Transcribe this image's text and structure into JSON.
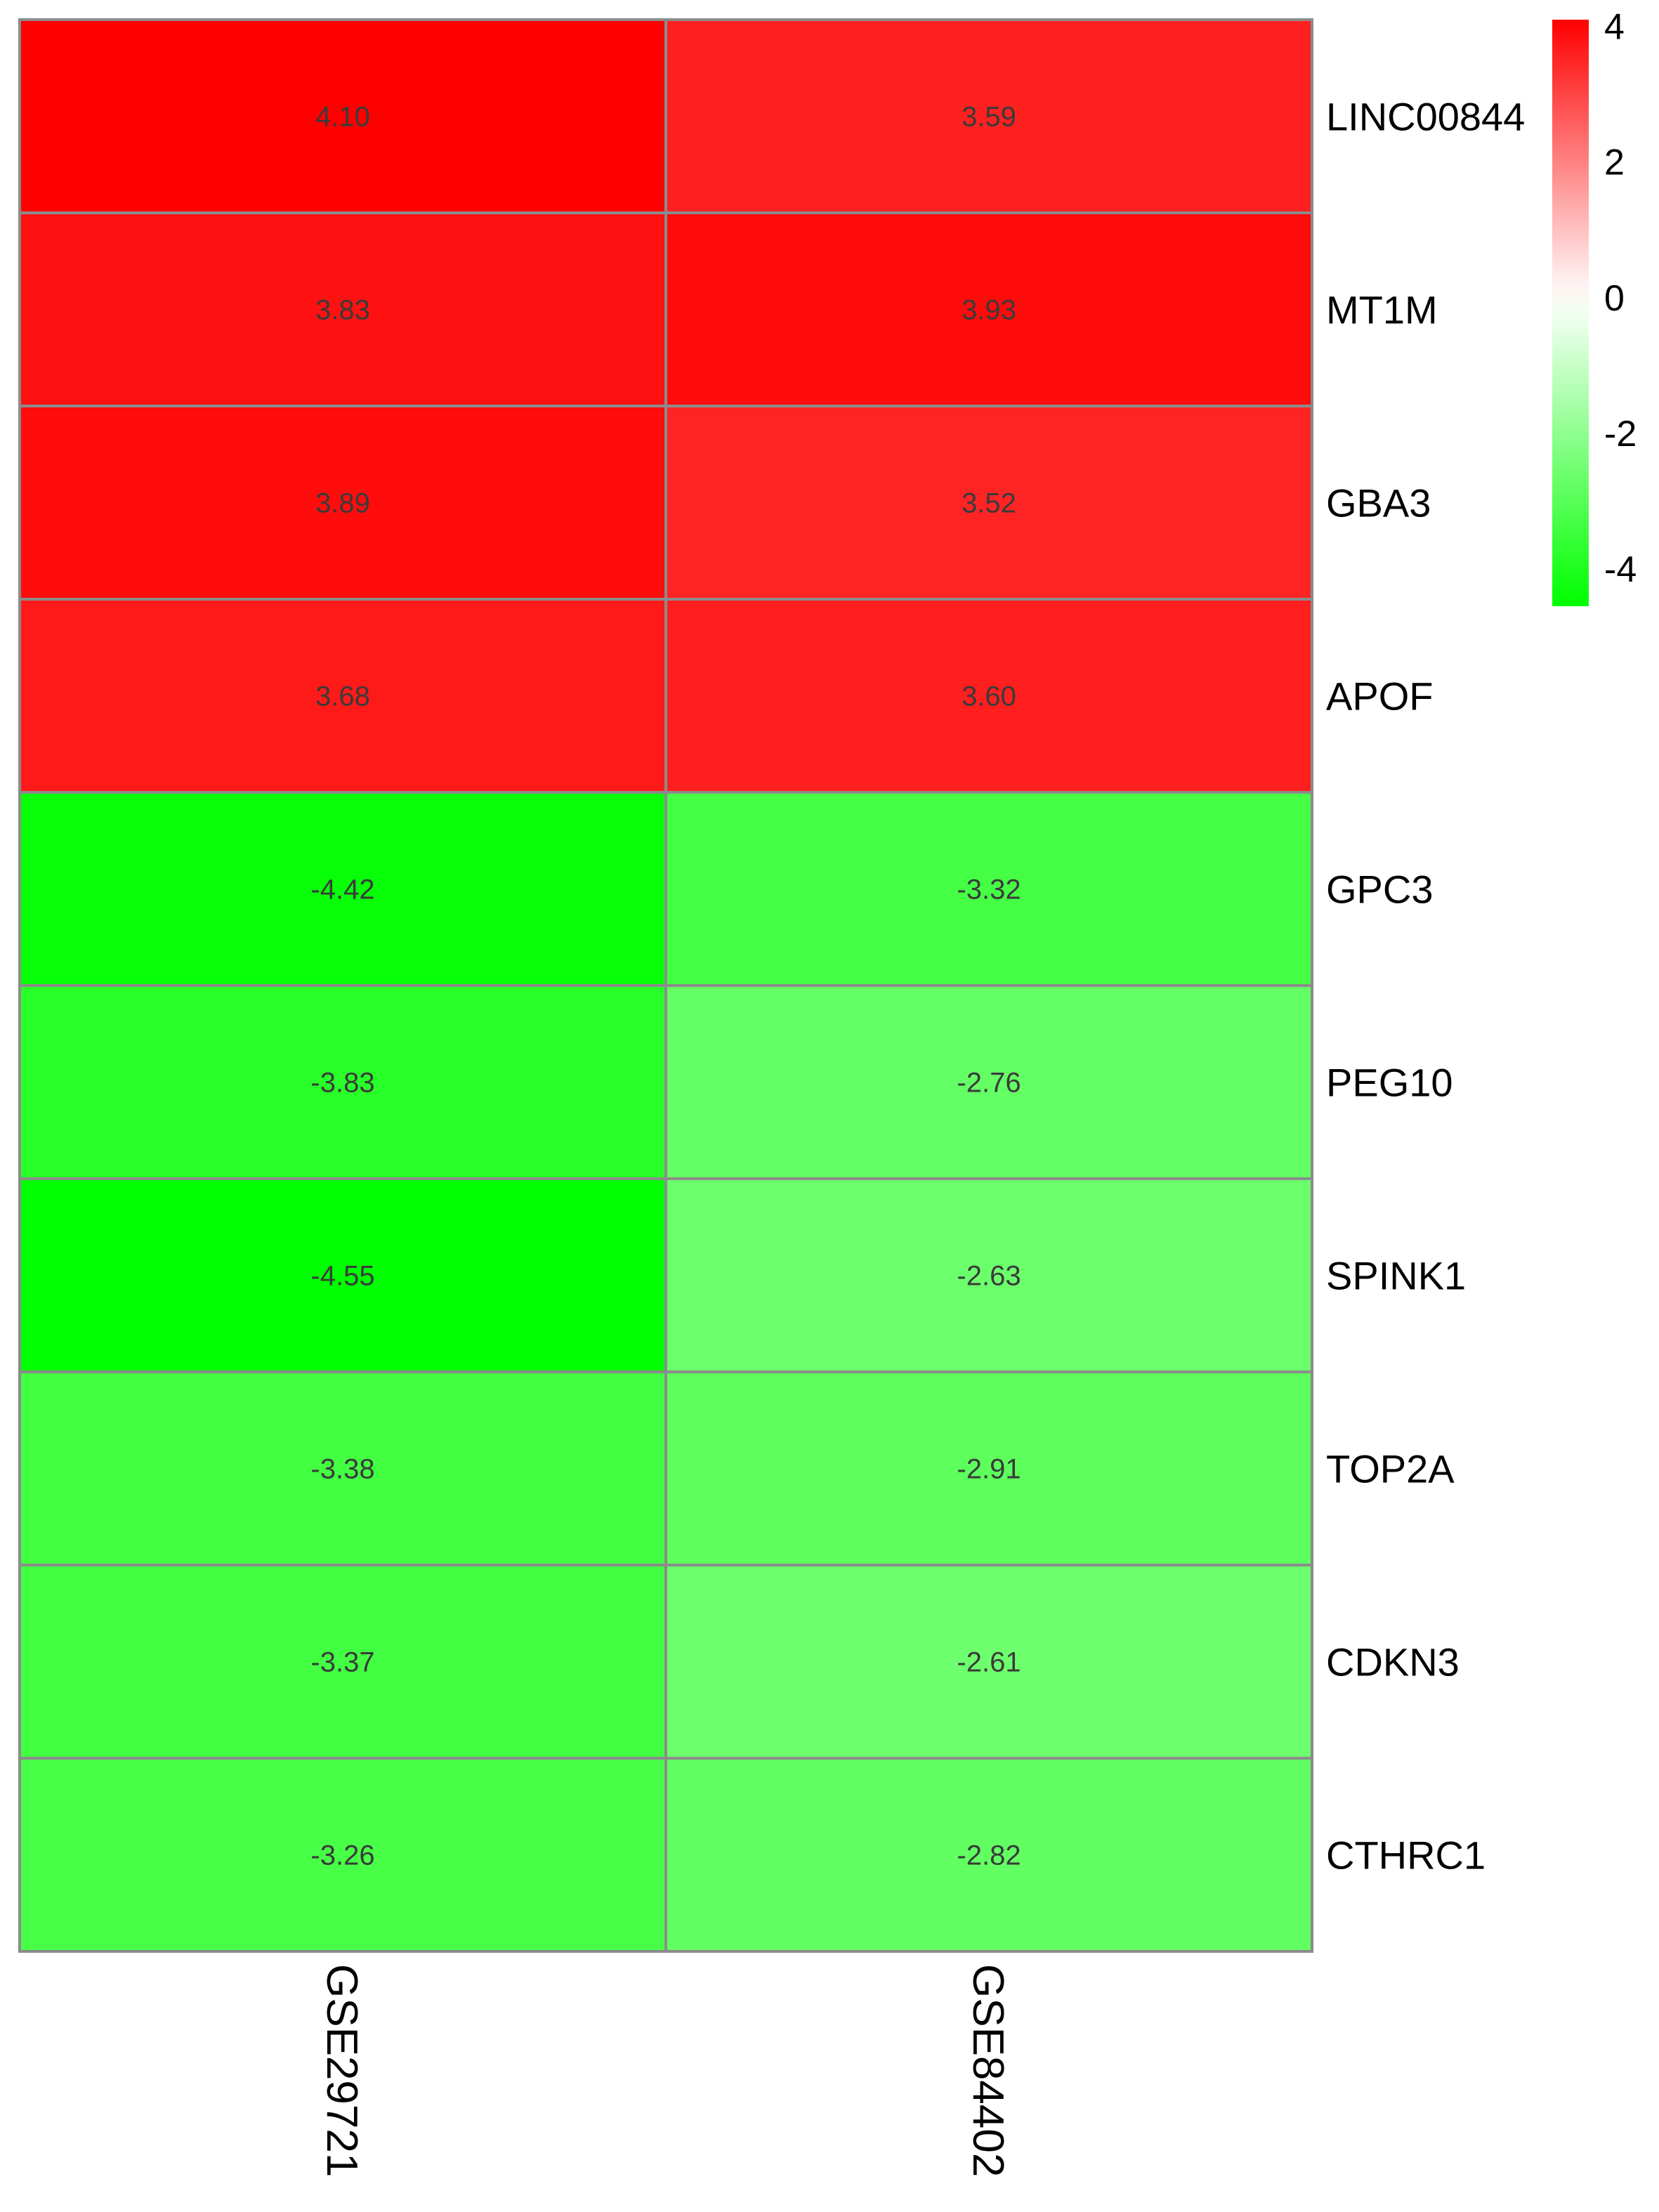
{
  "chart_data": {
    "type": "heatmap",
    "title": "",
    "xlabel": "",
    "ylabel": "",
    "columns": [
      "GSE29721",
      "GSE84402"
    ],
    "rows": [
      "LINC00844",
      "MT1M",
      "GBA3",
      "APOF",
      "GPC3",
      "PEG10",
      "SPINK1",
      "TOP2A",
      "CDKN3",
      "CTHRC1"
    ],
    "values": [
      [
        4.1,
        3.59
      ],
      [
        3.83,
        3.93
      ],
      [
        3.89,
        3.52
      ],
      [
        3.68,
        3.6
      ],
      [
        -4.42,
        -3.32
      ],
      [
        -3.83,
        -2.76
      ],
      [
        -4.55,
        -2.63
      ],
      [
        -3.38,
        -2.91
      ],
      [
        -3.37,
        -2.61
      ],
      [
        -3.26,
        -2.82
      ]
    ],
    "value_labels": [
      [
        "4.10",
        "3.59"
      ],
      [
        "3.83",
        "3.93"
      ],
      [
        "3.89",
        "3.52"
      ],
      [
        "3.68",
        "3.60"
      ],
      [
        "-4.42",
        "-3.32"
      ],
      [
        "-3.83",
        "-2.76"
      ],
      [
        "-4.55",
        "-2.63"
      ],
      [
        "-3.38",
        "-2.91"
      ],
      [
        "-3.37",
        "-2.61"
      ],
      [
        "-3.26",
        "-2.82"
      ]
    ],
    "color_scale": {
      "min": -4.55,
      "max": 4.1,
      "low_color": "#00ff00",
      "mid_color": "#ffffff",
      "high_color": "#ff0000"
    },
    "legend": {
      "placement": "top-right",
      "ticks": [
        "4",
        "2",
        "0",
        "-2",
        "-4"
      ],
      "tick_values": [
        4,
        2,
        0,
        -2,
        -4
      ]
    },
    "grid_color": "#8c8c8c"
  }
}
